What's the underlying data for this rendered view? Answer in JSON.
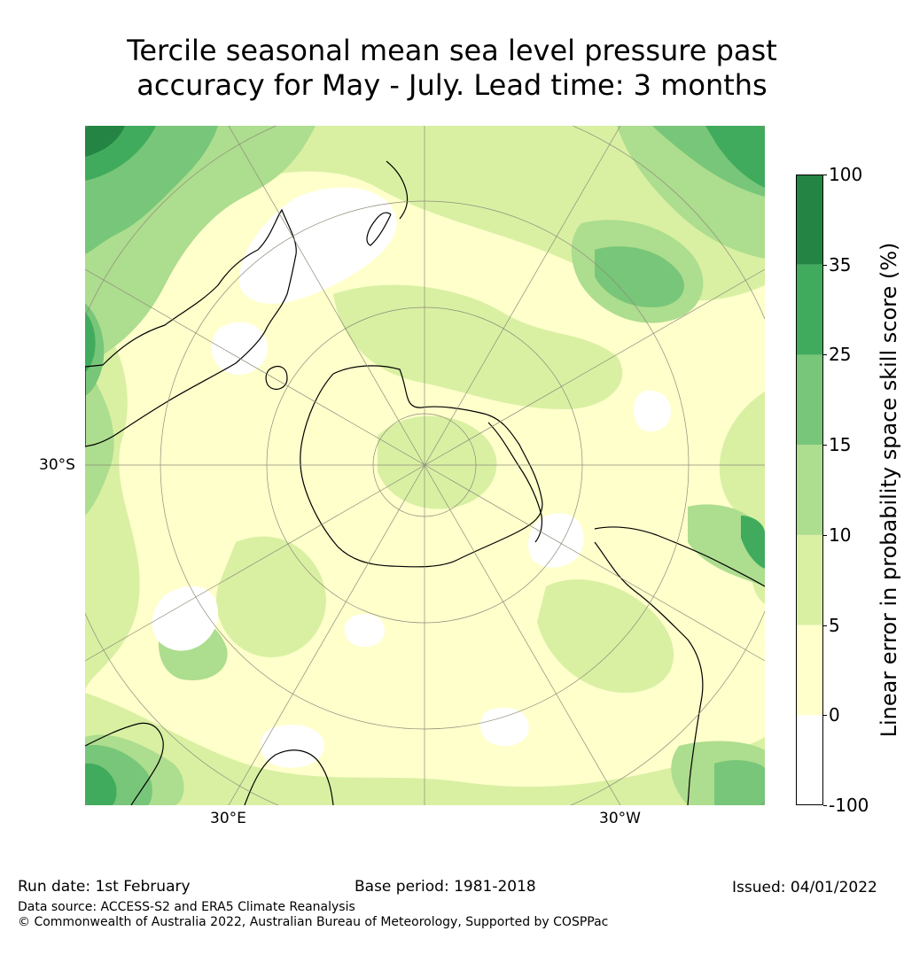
{
  "title": {
    "line1": "Tercile seasonal mean sea level pressure past",
    "line2": "accuracy for May - July. Lead time: 3 months"
  },
  "map": {
    "projection": "south polar stereographic",
    "labels": {
      "left": "30°S",
      "bottom_left": "30°E",
      "bottom_right": "30°W"
    },
    "colors": {
      "ocean_base": "#ffffcc",
      "land_outline": "#000000",
      "graticule": "#8c8c7a"
    }
  },
  "colorbar": {
    "label": "Linear error in probability space skill score (%)",
    "ticks": [
      "100",
      "35",
      "25",
      "15",
      "10",
      "5",
      "0",
      "-100"
    ],
    "bins": [
      {
        "from": -100,
        "to": 0,
        "color": "#ffffff"
      },
      {
        "from": 0,
        "to": 5,
        "color": "#ffffcc"
      },
      {
        "from": 5,
        "to": 10,
        "color": "#d9f0a3"
      },
      {
        "from": 10,
        "to": 15,
        "color": "#addd8e"
      },
      {
        "from": 15,
        "to": 25,
        "color": "#78c679"
      },
      {
        "from": 25,
        "to": 35,
        "color": "#41ab5d"
      },
      {
        "from": 35,
        "to": 100,
        "color": "#238443"
      }
    ]
  },
  "footer": {
    "run_date": "Run date: 1st February",
    "base_period": "Base period: 1981-2018",
    "issued": "Issued: 04/01/2022",
    "data_source": "Data source: ACCESS-S2 and ERA5 Climate Reanalysis",
    "copyright": "© Commonwealth of Australia 2022, Australian Bureau of Meteorology, Supported by COSPPac"
  }
}
